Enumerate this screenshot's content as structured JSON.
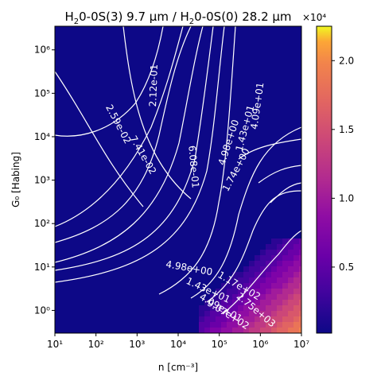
{
  "chart_data": {
    "type": "heatmap",
    "title_prefix": "H",
    "title_sub1": "2",
    "title_mid": "0-0S(3) 9.7 μm / H",
    "title_sub2": "2",
    "title_suffix": "0-0S(0) 28.2 μm",
    "xlabel": "n [cm⁻³]",
    "ylabel": "G₀ [Habing]",
    "x_scale": "log",
    "y_scale": "log",
    "xlim": [
      10,
      10000000
    ],
    "ylim": [
      0.3,
      3500000
    ],
    "x_ticks": [
      {
        "value": 10,
        "label": "10¹"
      },
      {
        "value": 100,
        "label": "10²"
      },
      {
        "value": 1000,
        "label": "10³"
      },
      {
        "value": 10000,
        "label": "10⁴"
      },
      {
        "value": 100000,
        "label": "10⁵"
      },
      {
        "value": 1000000,
        "label": "10⁶"
      },
      {
        "value": 10000000,
        "label": "10⁷"
      }
    ],
    "y_ticks": [
      {
        "value": 1,
        "label": "10⁰"
      },
      {
        "value": 10,
        "label": "10¹"
      },
      {
        "value": 100,
        "label": "10²"
      },
      {
        "value": 1000,
        "label": "10³"
      },
      {
        "value": 10000,
        "label": "10⁴"
      },
      {
        "value": 100000,
        "label": "10⁵"
      },
      {
        "value": 1000000,
        "label": "10⁶"
      }
    ],
    "colormap": "plasma",
    "colorbar": {
      "min": 0.02,
      "max": 2.25,
      "ticks": [
        {
          "value": 0.5,
          "label": "0.5"
        },
        {
          "value": 1.0,
          "label": "1.0"
        },
        {
          "value": 1.5,
          "label": "1.5"
        },
        {
          "value": 2.0,
          "label": "2.0"
        }
      ],
      "offset_label": "×10⁴"
    },
    "contour_color": "#ffffff",
    "contour_labels": [
      {
        "text": "2.59e-02",
        "x": 300,
        "y": 18000,
        "angle": -62
      },
      {
        "text": "7.41e-02",
        "x": 1200,
        "y": 3500,
        "angle": -60
      },
      {
        "text": "2.12e-01",
        "x": 3000,
        "y": 150000,
        "angle": 88
      },
      {
        "text": "6.08e-01",
        "x": 20000,
        "y": 2000,
        "angle": -85
      },
      {
        "text": "4.09e+01",
        "x": 1000000,
        "y": 50000,
        "angle": 82
      },
      {
        "text": "1.43e+01",
        "x": 500000,
        "y": 15000,
        "angle": 75
      },
      {
        "text": "4.98e+00",
        "x": 200000,
        "y": 7000,
        "angle": 72
      },
      {
        "text": "1.74e+00",
        "x": 300000,
        "y": 1600,
        "angle": 62
      },
      {
        "text": "4.98e+00",
        "x": 18000,
        "y": 8,
        "angle": -10
      },
      {
        "text": "1.43e+01",
        "x": 50000,
        "y": 2.5,
        "angle": -25
      },
      {
        "text": "4.09e+01",
        "x": 100000,
        "y": 1.0,
        "angle": -30
      },
      {
        "text": "1.17e+02",
        "x": 280000,
        "y": 3.2,
        "angle": -30
      },
      {
        "text": "9.07e+02",
        "x": 150000,
        "y": 0.7,
        "angle": -32
      },
      {
        "text": "2.75e+03",
        "x": 700000,
        "y": 0.9,
        "angle": -40
      }
    ]
  }
}
